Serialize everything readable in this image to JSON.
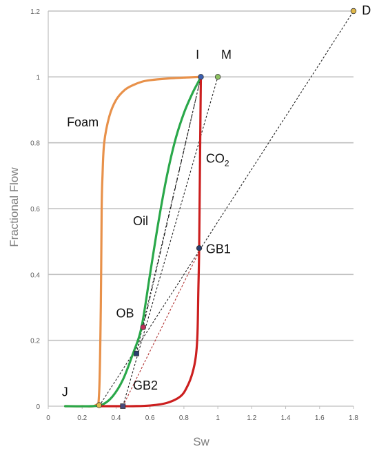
{
  "chart_data": {
    "type": "line",
    "xlabel": "Sw",
    "ylabel": "Fractional Flow",
    "xlim": [
      0,
      1.8
    ],
    "ylim": [
      0,
      1.2
    ],
    "xticks": [
      "0",
      "0.2",
      "0.4",
      "0.6",
      "0.8",
      "1",
      "1.2",
      "1.4",
      "1.6",
      "1.8"
    ],
    "xtick_values": [
      0,
      0.2,
      0.4,
      0.6,
      0.8,
      1.0,
      1.2,
      1.4,
      1.6,
      1.8
    ],
    "yticks": [
      "0",
      "0.2",
      "0.4",
      "0.6",
      "0.8",
      "1",
      "1.2"
    ],
    "ytick_values": [
      0,
      0.2,
      0.4,
      0.6,
      0.8,
      1.0,
      1.2
    ],
    "grid": "horizontal",
    "colors": {
      "foam": "#e8914a",
      "oil": "#2aa84a",
      "co2": "#cc1f1f",
      "grid": "#c0c0c0",
      "axis": "#bfbfbf",
      "dashed_black": "#222222",
      "dashed_red": "#b03030"
    },
    "series": [
      {
        "label": "Foam",
        "color": "#e8914a",
        "x": [
          0.1,
          0.2,
          0.28,
          0.3,
          0.31,
          0.315,
          0.32,
          0.33,
          0.36,
          0.4,
          0.45,
          0.5,
          0.55,
          0.6,
          0.7,
          0.8,
          0.9
        ],
        "y": [
          0,
          0,
          0.003,
          0.04,
          0.3,
          0.6,
          0.7,
          0.8,
          0.88,
          0.93,
          0.96,
          0.975,
          0.985,
          0.99,
          0.995,
          0.998,
          1.0
        ]
      },
      {
        "label": "Oil",
        "color": "#2aa84a",
        "x": [
          0.1,
          0.25,
          0.32,
          0.38,
          0.44,
          0.5,
          0.55,
          0.6,
          0.65,
          0.7,
          0.75,
          0.8,
          0.85,
          0.88,
          0.9
        ],
        "y": [
          0,
          0,
          0.005,
          0.03,
          0.08,
          0.16,
          0.24,
          0.4,
          0.56,
          0.7,
          0.81,
          0.89,
          0.95,
          0.98,
          1.0
        ]
      },
      {
        "label": "CO2",
        "color": "#cc1f1f",
        "x": [
          0.3,
          0.44,
          0.5,
          0.6,
          0.7,
          0.78,
          0.82,
          0.85,
          0.87,
          0.88,
          0.885,
          0.89,
          0.895,
          0.9
        ],
        "y": [
          0,
          0,
          0.0,
          0.002,
          0.01,
          0.03,
          0.06,
          0.1,
          0.15,
          0.22,
          0.35,
          0.48,
          0.75,
          1.0
        ]
      }
    ],
    "guide_lines": [
      {
        "from": [
          0.3,
          0.0
        ],
        "to": [
          1.8,
          1.2
        ],
        "style": "dashed",
        "color": "#222222"
      },
      {
        "from": [
          0.44,
          0.0
        ],
        "to": [
          0.9,
          0.48
        ],
        "style": "dashed",
        "color": "#b03030"
      },
      {
        "from": [
          0.44,
          0.0
        ],
        "to": [
          1.0,
          1.0
        ],
        "style": "dashed",
        "color": "#222222"
      },
      {
        "from": [
          0.56,
          0.24
        ],
        "to": [
          0.9,
          1.0
        ],
        "style": "dashdot",
        "color": "#222222"
      },
      {
        "from": [
          0.52,
          0.16
        ],
        "to": [
          0.9,
          1.0
        ],
        "style": "dashed",
        "color": "#222222"
      }
    ],
    "points": [
      {
        "name": "D",
        "x": 1.8,
        "y": 1.2,
        "fill": "#e0b84a"
      },
      {
        "name": "I",
        "x": 0.9,
        "y": 1.0,
        "fill": "#3a5fb0"
      },
      {
        "name": "M",
        "x": 1.0,
        "y": 1.0,
        "fill": "#8cc060"
      },
      {
        "name": "GB1",
        "x": 0.89,
        "y": 0.48,
        "fill": "#2a3f6f"
      },
      {
        "name": "OB",
        "x": 0.56,
        "y": 0.24,
        "fill": "#c0305a"
      },
      {
        "name": "GB2",
        "x": 0.52,
        "y": 0.16,
        "fill": "#2a3f6f"
      },
      {
        "name": "J",
        "x": 0.3,
        "y": 0.003,
        "fill": "#e0b84a"
      },
      {
        "name": "GB2-base",
        "x": 0.44,
        "y": 0.0,
        "fill": "#4a4a7a"
      }
    ],
    "annotations": [
      {
        "text": "D",
        "x": 1.85,
        "y": 1.19
      },
      {
        "text": "I",
        "x": 0.87,
        "y": 1.055
      },
      {
        "text": "M",
        "x": 1.02,
        "y": 1.055
      },
      {
        "text": "Foam",
        "x": 0.11,
        "y": 0.85
      },
      {
        "text": "CO",
        "sub": "2",
        "x": 0.93,
        "y": 0.74
      },
      {
        "text": "Oil",
        "x": 0.5,
        "y": 0.55
      },
      {
        "text": "GB1",
        "x": 0.93,
        "y": 0.465
      },
      {
        "text": "OB",
        "x": 0.4,
        "y": 0.27
      },
      {
        "text": "GB2",
        "x": 0.5,
        "y": 0.05
      },
      {
        "text": "J",
        "x": 0.08,
        "y": 0.03
      }
    ]
  }
}
